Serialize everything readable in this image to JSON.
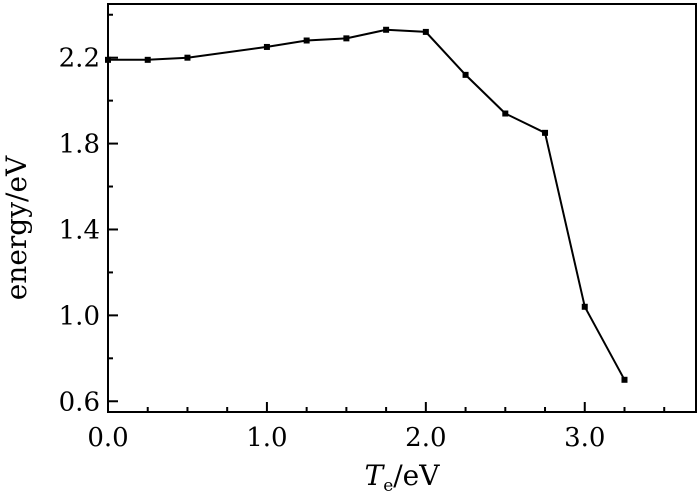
{
  "chart_data": {
    "type": "line",
    "title": "",
    "xlabel": {
      "main": "T",
      "subscript": "e",
      "unit": "/eV"
    },
    "ylabel": "energy/eV",
    "xlim": [
      0.0,
      3.7
    ],
    "ylim": [
      0.55,
      2.45
    ],
    "x_ticks": [
      0.0,
      1.0,
      2.0,
      3.0
    ],
    "x_tick_labels": [
      "0.0",
      "1.0",
      "2.0",
      "3.0"
    ],
    "x_minor_ticks": [
      0.25,
      0.5,
      0.75,
      1.25,
      1.5,
      1.75,
      2.25,
      2.5,
      2.75,
      3.25,
      3.5
    ],
    "y_ticks": [
      0.6,
      1.0,
      1.4,
      1.8,
      2.2
    ],
    "y_tick_labels": [
      "0.6",
      "1.0",
      "1.4",
      "1.8",
      "2.2"
    ],
    "y_minor_ticks": [
      0.8,
      1.2,
      1.6,
      2.0,
      2.4
    ],
    "grid": false,
    "legend": "none",
    "color": "#000000",
    "series": [
      {
        "x": [
          0.0,
          0.25,
          0.5,
          1.0,
          1.25,
          1.5,
          1.75,
          2.0,
          2.25,
          2.5,
          2.75,
          3.0,
          3.25
        ],
        "y": [
          2.19,
          2.19,
          2.2,
          2.25,
          2.28,
          2.29,
          2.33,
          2.32,
          2.12,
          1.94,
          1.85,
          1.04,
          0.7
        ]
      }
    ]
  }
}
